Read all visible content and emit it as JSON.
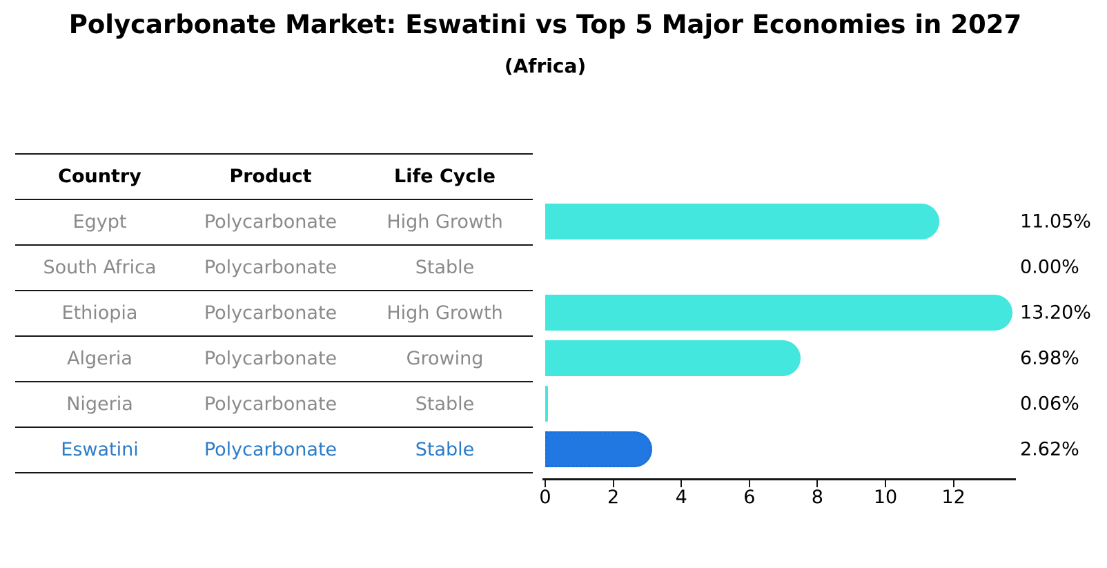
{
  "title": "Polycarbonate Market: Eswatini vs Top 5 Major Economies in 2027",
  "subtitle": "(Africa)",
  "table": {
    "headers": [
      "Country",
      "Product",
      "Life Cycle"
    ],
    "rows": [
      {
        "country": "Egypt",
        "product": "Polycarbonate",
        "life_cycle": "High Growth",
        "highlight": false
      },
      {
        "country": "South Africa",
        "product": "Polycarbonate",
        "life_cycle": "Stable",
        "highlight": false
      },
      {
        "country": "Ethiopia",
        "product": "Polycarbonate",
        "life_cycle": "High Growth",
        "highlight": false
      },
      {
        "country": "Algeria",
        "product": "Polycarbonate",
        "life_cycle": "Growing",
        "highlight": false
      },
      {
        "country": "Nigeria",
        "product": "Polycarbonate",
        "life_cycle": "Stable",
        "highlight": false
      },
      {
        "country": "Eswatini",
        "product": "Polycarbonate",
        "life_cycle": "Stable",
        "highlight": true
      }
    ]
  },
  "chart_data": {
    "type": "bar",
    "orientation": "horizontal",
    "title": "Polycarbonate Market: Eswatini vs Top 5 Major Economies in 2027",
    "subtitle": "(Africa)",
    "categories": [
      "Egypt",
      "South Africa",
      "Ethiopia",
      "Algeria",
      "Nigeria",
      "Eswatini"
    ],
    "values": [
      11.05,
      0.0,
      13.2,
      6.98,
      0.06,
      2.62
    ],
    "value_labels": [
      "11.05%",
      "0.00%",
      "13.20%",
      "6.98%",
      "0.06%",
      "2.62%"
    ],
    "highlight_category": "Eswatini",
    "xticks": [
      0,
      2,
      4,
      6,
      8,
      10,
      12
    ],
    "xlim": [
      0,
      13.88
    ],
    "grid": false,
    "legend": "none",
    "xlabel": "",
    "ylabel": ""
  },
  "colors": {
    "bar_default": "#44e7dd",
    "bar_highlight": "#2178e3",
    "highlight_text": "#2b7cc9",
    "row_text": "#8a8a8a",
    "header_text": "#000000",
    "axis": "#161616",
    "background": "#ffffff"
  }
}
